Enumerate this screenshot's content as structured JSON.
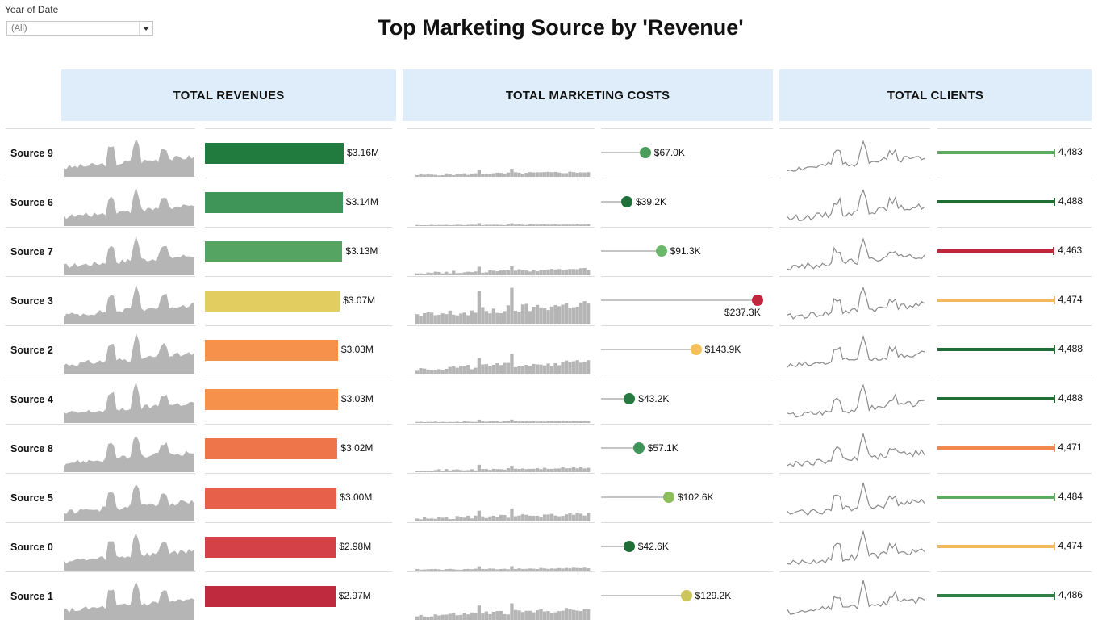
{
  "filter": {
    "label": "Year of Date",
    "value": "(All)"
  },
  "title": "Top Marketing Source by 'Revenue'",
  "headers": {
    "revenues": "TOTAL REVENUES",
    "costs": "TOTAL MARKETING COSTS",
    "clients": "TOTAL CLIENTS"
  },
  "colors": {
    "header_bg": "#deedf9",
    "sparkline": "#b5b5b5",
    "client_line": "#8a8a8a"
  },
  "chart_data": {
    "type": "table",
    "rows": [
      {
        "source": "Source 9",
        "revenue": 3.16,
        "revenue_label": "$3.16M",
        "revenue_color": "#217a3e",
        "cost": 67.0,
        "cost_label": "$67.0K",
        "cost_color": "#4a9e5c",
        "clients": 4483,
        "clients_label": "4,483",
        "clients_color": "#5eaa65",
        "cost_spark_scale": 0.55
      },
      {
        "source": "Source 6",
        "revenue": 3.14,
        "revenue_label": "$3.14M",
        "revenue_color": "#3e9557",
        "cost": 39.2,
        "cost_label": "$39.2K",
        "cost_color": "#1e7038",
        "clients": 4488,
        "clients_label": "4,488",
        "clients_color": "#1f6e36",
        "cost_spark_scale": 0.2
      },
      {
        "source": "Source 7",
        "revenue": 3.13,
        "revenue_label": "$3.13M",
        "revenue_color": "#56a461",
        "cost": 91.3,
        "cost_label": "$91.3K",
        "cost_color": "#6cb86a",
        "clients": 4463,
        "clients_label": "4,463",
        "clients_color": "#c0283a",
        "cost_spark_scale": 0.7
      },
      {
        "source": "Source 3",
        "revenue": 3.07,
        "revenue_label": "$3.07M",
        "revenue_color": "#e2cd60",
        "cost": 237.3,
        "cost_label": "$237.3K",
        "cost_color": "#c3253c",
        "clients": 4474,
        "clients_label": "4,474",
        "clients_color": "#f3b95c",
        "cost_spark_scale": 2.4
      },
      {
        "source": "Source 2",
        "revenue": 3.03,
        "revenue_label": "$3.03M",
        "revenue_color": "#f5914b",
        "cost": 143.9,
        "cost_label": "$143.9K",
        "cost_color": "#f5c05a",
        "clients": 4488,
        "clients_label": "4,488",
        "clients_color": "#1f6e36",
        "cost_spark_scale": 1.35
      },
      {
        "source": "Source 4",
        "revenue": 3.03,
        "revenue_label": "$3.03M",
        "revenue_color": "#f5914b",
        "cost": 43.2,
        "cost_label": "$43.2K",
        "cost_color": "#267940",
        "clients": 4488,
        "clients_label": "4,488",
        "clients_color": "#1f6e36",
        "cost_spark_scale": 0.25
      },
      {
        "source": "Source 8",
        "revenue": 3.02,
        "revenue_label": "$3.02M",
        "revenue_color": "#ee7449",
        "cost": 57.1,
        "cost_label": "$57.1K",
        "cost_color": "#3e9557",
        "clients": 4471,
        "clients_label": "4,471",
        "clients_color": "#f08a4b",
        "cost_spark_scale": 0.5
      },
      {
        "source": "Source 5",
        "revenue": 3.0,
        "revenue_label": "$3.00M",
        "revenue_color": "#e6604a",
        "cost": 102.6,
        "cost_label": "$102.6K",
        "cost_color": "#8cbd5a",
        "clients": 4484,
        "clients_label": "4,484",
        "clients_color": "#5eaa65",
        "cost_spark_scale": 0.85
      },
      {
        "source": "Source 0",
        "revenue": 2.98,
        "revenue_label": "$2.98M",
        "revenue_color": "#d44146",
        "cost": 42.6,
        "cost_label": "$42.6K",
        "cost_color": "#1f6e36",
        "clients": 4474,
        "clients_label": "4,474",
        "clients_color": "#f3b95c",
        "cost_spark_scale": 0.3
      },
      {
        "source": "Source 1",
        "revenue": 2.97,
        "revenue_label": "$2.97M",
        "revenue_color": "#c02a3f",
        "cost": 129.2,
        "cost_label": "$129.2K",
        "cost_color": "#cbc55c",
        "clients": 4486,
        "clients_label": "4,486",
        "clients_color": "#2f7f46",
        "cost_spark_scale": 1.2
      }
    ],
    "revenue_max": 3.16,
    "cost_max": 237.3,
    "clients_max": 4488
  }
}
